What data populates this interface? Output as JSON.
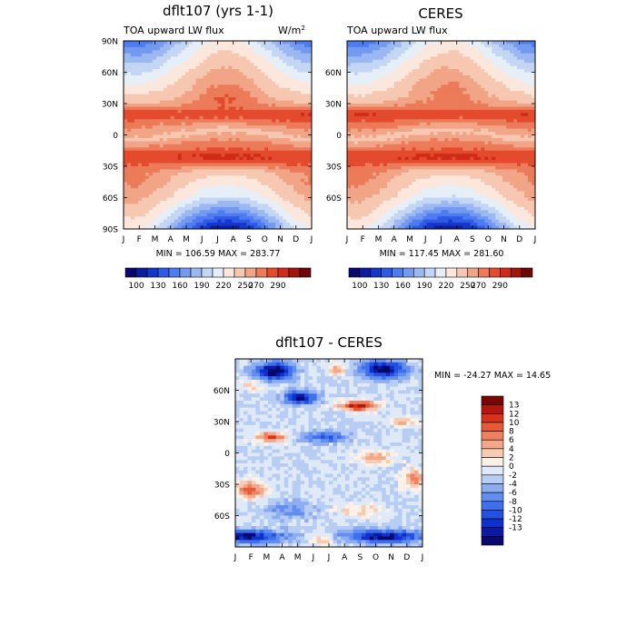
{
  "colors": {
    "cb_flux": [
      "#08086e",
      "#0a1fa0",
      "#1436cc",
      "#2f5ae6",
      "#4d7cf0",
      "#7399f0",
      "#9cb8f2",
      "#c3d6f3",
      "#e6eef8",
      "#fbe7dc",
      "#f7c8b1",
      "#f2a487",
      "#eb7b59",
      "#e44b2e",
      "#cf2b18",
      "#a3140b",
      "#6e0606"
    ],
    "cb_diff": [
      "#08086e",
      "#0b1aa0",
      "#1030cd",
      "#2451e0",
      "#3d70ed",
      "#628ef0",
      "#8eadf1",
      "#b8cdf3",
      "#dfe9f8",
      "#fdf0e6",
      "#f8ccb4",
      "#f3a88a",
      "#ee815f",
      "#e85936",
      "#d7321b",
      "#b3170d",
      "#7a0505"
    ]
  },
  "chart_data": [
    {
      "type": "heatmap",
      "title": "dflt107 (yrs 1-1)",
      "subtitle": "TOA upward LW flux",
      "units_base": "W/m",
      "units_exp": "2",
      "stats": "MIN = 106.59 MAX = 283.77",
      "min": 106.59,
      "max": 283.77,
      "xticks": [
        "J",
        "F",
        "M",
        "A",
        "M",
        "J",
        "J",
        "A",
        "S",
        "O",
        "N",
        "D",
        "J"
      ],
      "yticks": [
        "90N",
        "60N",
        "30N",
        "0",
        "30S",
        "60S",
        "90S"
      ],
      "yvalues": [
        90,
        60,
        30,
        0,
        -30,
        -60,
        -90
      ],
      "ylim": [
        -90,
        90
      ],
      "colorbar_labels": [
        "100",
        "130",
        "160",
        "190",
        "220",
        "250",
        "270",
        "290"
      ],
      "levels": [
        100,
        115,
        130,
        145,
        160,
        175,
        190,
        205,
        220,
        235,
        250,
        260,
        270,
        280,
        290
      ],
      "variant": "model"
    },
    {
      "type": "heatmap",
      "title": "CERES",
      "subtitle": "TOA upward LW flux",
      "stats": "MIN = 117.45 MAX = 281.60",
      "min": 117.45,
      "max": 281.6,
      "xticks": [
        "J",
        "F",
        "M",
        "A",
        "M",
        "J",
        "J",
        "A",
        "S",
        "O",
        "N",
        "D",
        "J"
      ],
      "yticks": [
        "60N",
        "30N",
        "0",
        "30S",
        "60S"
      ],
      "yvalues": [
        60,
        30,
        0,
        -30,
        -60
      ],
      "ylim": [
        -90,
        90
      ],
      "colorbar_labels": [
        "100",
        "130",
        "160",
        "190",
        "220",
        "250",
        "270",
        "290"
      ],
      "levels": [
        100,
        115,
        130,
        145,
        160,
        175,
        190,
        205,
        220,
        235,
        250,
        260,
        270,
        280,
        290
      ],
      "variant": "obs"
    },
    {
      "type": "heatmap",
      "title": "dflt107 - CERES",
      "stats": "MIN = -24.27 MAX =  14.65",
      "min": -24.27,
      "max": 14.65,
      "xticks": [
        "J",
        "F",
        "M",
        "A",
        "M",
        "J",
        "J",
        "A",
        "S",
        "O",
        "N",
        "D",
        "J"
      ],
      "yticks": [
        "60N",
        "30N",
        "0",
        "30S",
        "60S"
      ],
      "yvalues": [
        60,
        30,
        0,
        -30,
        -60
      ],
      "ylim": [
        -90,
        90
      ],
      "colorbar_labels": [
        "13",
        "12",
        "10",
        "8",
        "6",
        "4",
        "2",
        "0",
        "-2",
        "-4",
        "-6",
        "-8",
        "-10",
        "-12",
        "-13"
      ],
      "levels": [
        -13,
        -12,
        -10,
        -8,
        -6,
        -4,
        -2,
        0,
        2,
        4,
        6,
        8,
        10,
        12,
        13
      ],
      "variant": "diff"
    }
  ]
}
